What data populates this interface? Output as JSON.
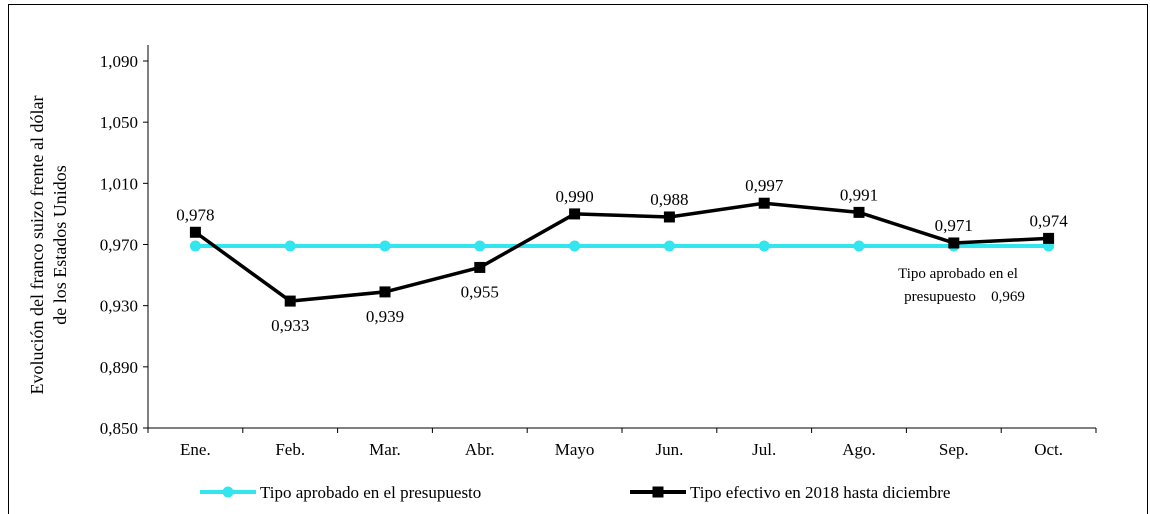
{
  "chart_data": {
    "type": "line",
    "ylabel_line1": "Evolución del  franco suizo frente al dólar",
    "ylabel_line2": "de los Estados Unidos",
    "ylim": [
      0.85,
      1.09
    ],
    "yticks": [
      0.85,
      0.89,
      0.93,
      0.97,
      1.01,
      1.05,
      1.09
    ],
    "ytick_labels": [
      "0,850",
      "0,890",
      "0,930",
      "0,970",
      "1,010",
      "1,050",
      "1,090"
    ],
    "categories": [
      "Ene.",
      "Feb.",
      "Mar.",
      "Abr.",
      "Mayo",
      "Jun.",
      "Jul.",
      "Ago.",
      "Sep.",
      "Oct."
    ],
    "series": [
      {
        "name": "Tipo aprobado en el presupuesto",
        "color": "#33e5ee",
        "marker": "circle",
        "values": [
          0.969,
          0.969,
          0.969,
          0.969,
          0.969,
          0.969,
          0.969,
          0.969,
          0.969,
          0.969
        ]
      },
      {
        "name": "Tipo efectivo en 2018 hasta diciembre",
        "color": "#000000",
        "marker": "square",
        "values": [
          0.978,
          0.933,
          0.939,
          0.955,
          0.99,
          0.988,
          0.997,
          0.991,
          0.971,
          0.974
        ],
        "labels": [
          "0,978",
          "0,933",
          "0,939",
          "0,955",
          "0,990",
          "0,988",
          "0,997",
          "0,991",
          "0,971",
          "0,974"
        ]
      }
    ],
    "annotation_line1": "Tipo aprobado en el",
    "annotation_line2": "presupuesto",
    "annotation_value": "0,969",
    "legend_position": "bottom",
    "grid": false
  }
}
